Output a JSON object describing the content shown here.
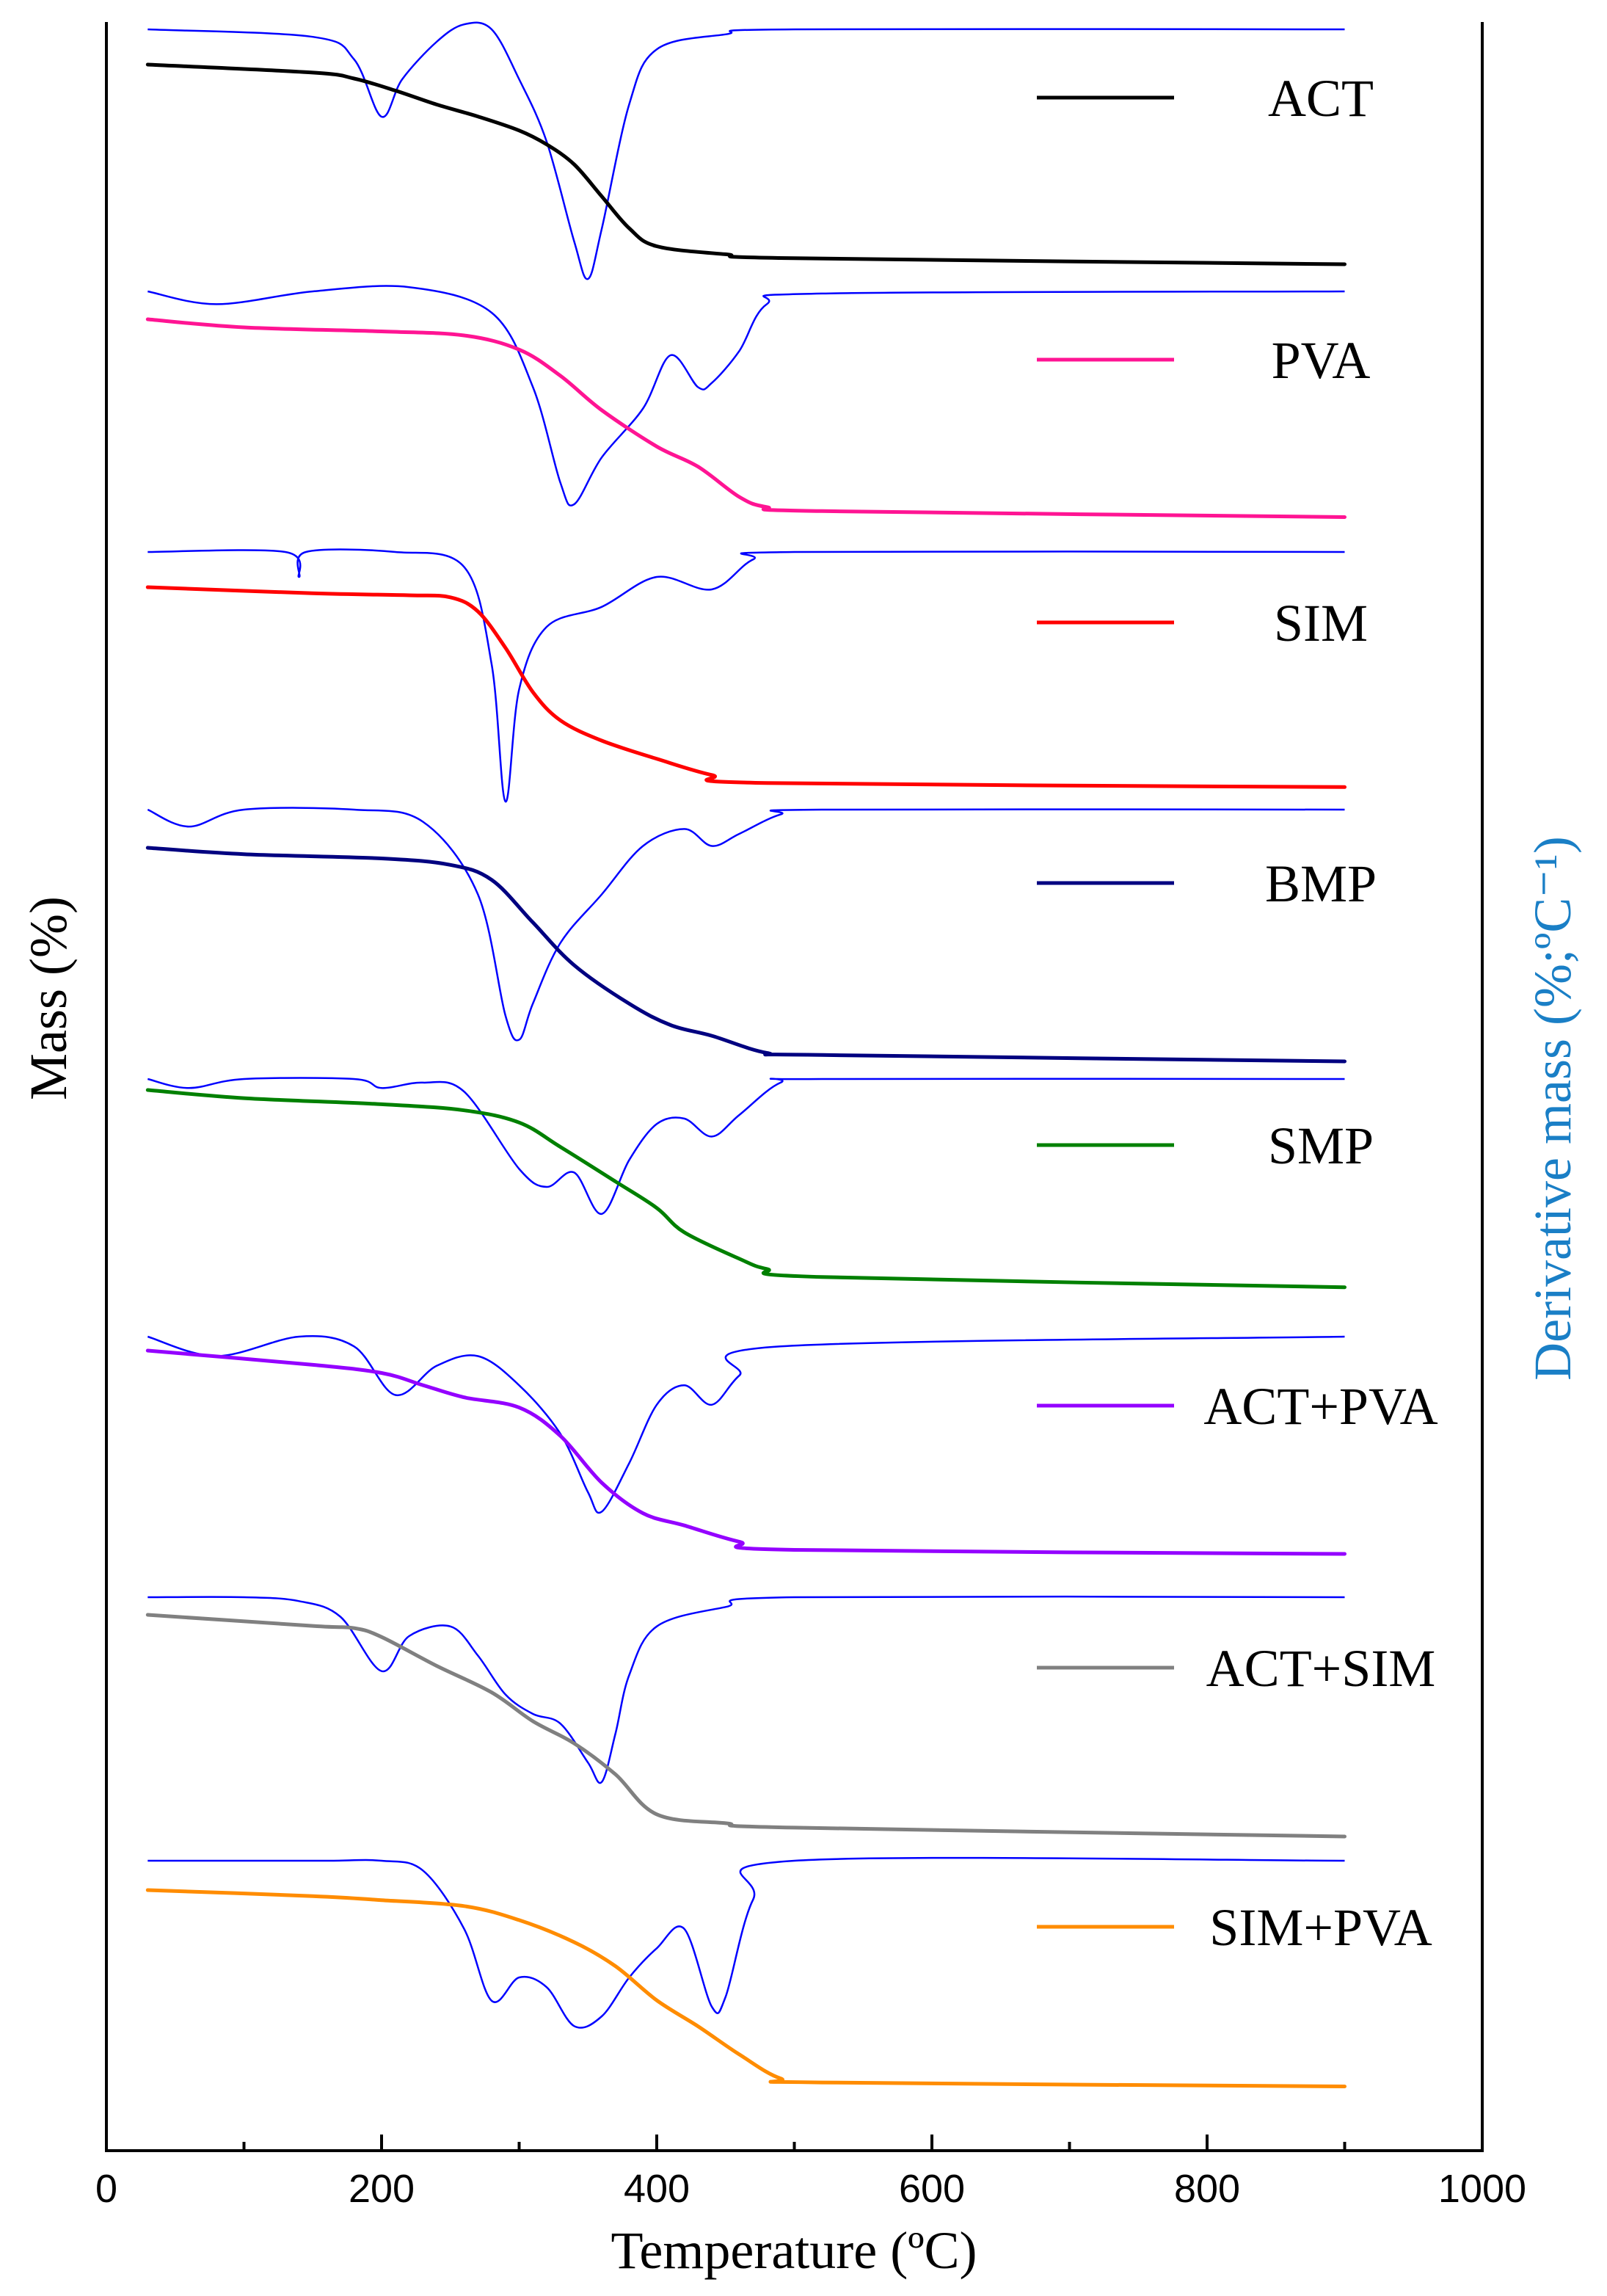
{
  "chart_data": {
    "type": "line",
    "xlabel": "Temperature (ºC)",
    "ylabel": "Mass (%)",
    "y2label": "Derivative mass (%;ºC⁻¹)",
    "xlim": [
      0,
      1000
    ],
    "xticks": [
      0,
      200,
      400,
      600,
      800,
      1000
    ],
    "colors": {
      "dtg": "#0000ff",
      "y2label": "#1a7fc6",
      "axes": "#000000"
    },
    "series": [
      {
        "name": "ACT",
        "color": "#000000",
        "tg": [
          [
            30,
            0
          ],
          [
            150,
            0.04
          ],
          [
            180,
            0.07
          ],
          [
            210,
            0.13
          ],
          [
            240,
            0.2
          ],
          [
            270,
            0.26
          ],
          [
            300,
            0.33
          ],
          [
            320,
            0.4
          ],
          [
            340,
            0.5
          ],
          [
            360,
            0.66
          ],
          [
            380,
            0.82
          ],
          [
            400,
            0.91
          ],
          [
            450,
            0.95
          ],
          [
            500,
            0.97
          ],
          [
            900,
            1.0
          ]
        ],
        "dtg": [
          [
            30,
            0
          ],
          [
            150,
            0.03
          ],
          [
            180,
            0.12
          ],
          [
            200,
            0.35
          ],
          [
            215,
            0.2
          ],
          [
            240,
            0.05
          ],
          [
            260,
            -0.02
          ],
          [
            280,
            0.0
          ],
          [
            300,
            0.2
          ],
          [
            320,
            0.45
          ],
          [
            340,
            0.85
          ],
          [
            350,
            1.0
          ],
          [
            360,
            0.8
          ],
          [
            380,
            0.3
          ],
          [
            400,
            0.08
          ],
          [
            450,
            0.02
          ],
          [
            500,
            0.0
          ],
          [
            900,
            0.0
          ]
        ]
      },
      {
        "name": "PVA",
        "color": "#ff1493",
        "tg": [
          [
            30,
            0
          ],
          [
            100,
            0.04
          ],
          [
            200,
            0.06
          ],
          [
            260,
            0.08
          ],
          [
            300,
            0.15
          ],
          [
            330,
            0.28
          ],
          [
            360,
            0.45
          ],
          [
            400,
            0.63
          ],
          [
            430,
            0.73
          ],
          [
            460,
            0.88
          ],
          [
            480,
            0.93
          ],
          [
            520,
            0.95
          ],
          [
            900,
            0.98
          ]
        ],
        "dtg": [
          [
            30,
            0
          ],
          [
            80,
            0.06
          ],
          [
            150,
            0.0
          ],
          [
            220,
            -0.02
          ],
          [
            280,
            0.1
          ],
          [
            310,
            0.45
          ],
          [
            330,
            0.9
          ],
          [
            340,
            1.0
          ],
          [
            360,
            0.78
          ],
          [
            390,
            0.55
          ],
          [
            410,
            0.3
          ],
          [
            430,
            0.45
          ],
          [
            440,
            0.43
          ],
          [
            460,
            0.28
          ],
          [
            480,
            0.06
          ],
          [
            520,
            0.01
          ],
          [
            900,
            0.0
          ]
        ]
      },
      {
        "name": "SIM",
        "color": "#ff0000",
        "tg": [
          [
            30,
            0
          ],
          [
            150,
            0.03
          ],
          [
            220,
            0.04
          ],
          [
            250,
            0.05
          ],
          [
            270,
            0.12
          ],
          [
            290,
            0.3
          ],
          [
            310,
            0.52
          ],
          [
            330,
            0.66
          ],
          [
            360,
            0.76
          ],
          [
            400,
            0.85
          ],
          [
            440,
            0.93
          ],
          [
            480,
            0.97
          ],
          [
            900,
            0.99
          ]
        ],
        "dtg": [
          [
            30,
            0
          ],
          [
            130,
            0.0
          ],
          [
            140,
            0.1
          ],
          [
            145,
            0.0
          ],
          [
            210,
            0.0
          ],
          [
            260,
            0.06
          ],
          [
            280,
            0.45
          ],
          [
            290,
            1.0
          ],
          [
            300,
            0.55
          ],
          [
            320,
            0.3
          ],
          [
            360,
            0.22
          ],
          [
            400,
            0.1
          ],
          [
            440,
            0.15
          ],
          [
            470,
            0.03
          ],
          [
            500,
            0.0
          ],
          [
            900,
            0.0
          ]
        ]
      },
      {
        "name": "BMP",
        "color": "#000080",
        "tg": [
          [
            30,
            0
          ],
          [
            100,
            0.03
          ],
          [
            200,
            0.05
          ],
          [
            250,
            0.08
          ],
          [
            280,
            0.15
          ],
          [
            310,
            0.35
          ],
          [
            340,
            0.55
          ],
          [
            380,
            0.73
          ],
          [
            410,
            0.83
          ],
          [
            440,
            0.88
          ],
          [
            480,
            0.96
          ],
          [
            520,
            0.97
          ],
          [
            900,
            1.0
          ]
        ],
        "dtg": [
          [
            30,
            0
          ],
          [
            60,
            0.07
          ],
          [
            100,
            0.0
          ],
          [
            180,
            0.0
          ],
          [
            230,
            0.05
          ],
          [
            270,
            0.35
          ],
          [
            290,
            0.85
          ],
          [
            300,
            0.95
          ],
          [
            310,
            0.8
          ],
          [
            330,
            0.55
          ],
          [
            360,
            0.35
          ],
          [
            390,
            0.15
          ],
          [
            420,
            0.08
          ],
          [
            440,
            0.15
          ],
          [
            460,
            0.1
          ],
          [
            490,
            0.02
          ],
          [
            520,
            0.0
          ],
          [
            900,
            0.0
          ]
        ]
      },
      {
        "name": "SMP",
        "color": "#008000",
        "tg": [
          [
            30,
            0
          ],
          [
            100,
            0.04
          ],
          [
            200,
            0.07
          ],
          [
            260,
            0.1
          ],
          [
            300,
            0.16
          ],
          [
            330,
            0.28
          ],
          [
            370,
            0.45
          ],
          [
            400,
            0.58
          ],
          [
            420,
            0.7
          ],
          [
            460,
            0.83
          ],
          [
            480,
            0.88
          ],
          [
            520,
            0.92
          ],
          [
            900,
            0.97
          ]
        ],
        "dtg": [
          [
            30,
            0
          ],
          [
            60,
            0.05
          ],
          [
            100,
            0.0
          ],
          [
            180,
            0.0
          ],
          [
            200,
            0.05
          ],
          [
            230,
            0.02
          ],
          [
            260,
            0.07
          ],
          [
            300,
            0.5
          ],
          [
            320,
            0.6
          ],
          [
            340,
            0.52
          ],
          [
            360,
            0.75
          ],
          [
            380,
            0.45
          ],
          [
            400,
            0.25
          ],
          [
            420,
            0.22
          ],
          [
            440,
            0.32
          ],
          [
            460,
            0.2
          ],
          [
            490,
            0.02
          ],
          [
            520,
            0.0
          ],
          [
            900,
            0.0
          ]
        ]
      },
      {
        "name": "ACT+PVA",
        "color": "#9400ff",
        "tg": [
          [
            30,
            0
          ],
          [
            150,
            0.07
          ],
          [
            200,
            0.11
          ],
          [
            230,
            0.17
          ],
          [
            260,
            0.23
          ],
          [
            300,
            0.28
          ],
          [
            330,
            0.42
          ],
          [
            360,
            0.65
          ],
          [
            390,
            0.8
          ],
          [
            420,
            0.86
          ],
          [
            460,
            0.94
          ],
          [
            500,
            0.98
          ],
          [
            900,
            1.0
          ]
        ],
        "dtg": [
          [
            30,
            0
          ],
          [
            80,
            0.1
          ],
          [
            140,
            0.0
          ],
          [
            180,
            0.05
          ],
          [
            210,
            0.3
          ],
          [
            240,
            0.15
          ],
          [
            270,
            0.1
          ],
          [
            300,
            0.25
          ],
          [
            330,
            0.5
          ],
          [
            350,
            0.8
          ],
          [
            360,
            0.9
          ],
          [
            380,
            0.65
          ],
          [
            400,
            0.35
          ],
          [
            420,
            0.25
          ],
          [
            440,
            0.35
          ],
          [
            460,
            0.2
          ],
          [
            490,
            0.05
          ],
          [
            900,
            0.0
          ]
        ]
      },
      {
        "name": "ACT+SIM",
        "color": "#808080",
        "tg": [
          [
            30,
            0
          ],
          [
            150,
            0.05
          ],
          [
            180,
            0.06
          ],
          [
            200,
            0.1
          ],
          [
            240,
            0.23
          ],
          [
            280,
            0.35
          ],
          [
            310,
            0.48
          ],
          [
            340,
            0.58
          ],
          [
            370,
            0.72
          ],
          [
            400,
            0.9
          ],
          [
            450,
            0.94
          ],
          [
            500,
            0.96
          ],
          [
            900,
            1.0
          ]
        ],
        "dtg": [
          [
            30,
            0
          ],
          [
            100,
            0.0
          ],
          [
            140,
            0.02
          ],
          [
            170,
            0.1
          ],
          [
            200,
            0.38
          ],
          [
            220,
            0.2
          ],
          [
            250,
            0.15
          ],
          [
            270,
            0.3
          ],
          [
            290,
            0.5
          ],
          [
            310,
            0.6
          ],
          [
            330,
            0.65
          ],
          [
            350,
            0.85
          ],
          [
            360,
            0.95
          ],
          [
            370,
            0.7
          ],
          [
            380,
            0.4
          ],
          [
            400,
            0.15
          ],
          [
            450,
            0.05
          ],
          [
            500,
            0.0
          ],
          [
            900,
            0.0
          ]
        ]
      },
      {
        "name": "SIM+PVA",
        "color": "#ff8c00",
        "tg": [
          [
            30,
            0
          ],
          [
            150,
            0.03
          ],
          [
            200,
            0.05
          ],
          [
            260,
            0.08
          ],
          [
            300,
            0.15
          ],
          [
            340,
            0.26
          ],
          [
            370,
            0.38
          ],
          [
            400,
            0.55
          ],
          [
            430,
            0.68
          ],
          [
            460,
            0.82
          ],
          [
            490,
            0.94
          ],
          [
            520,
            0.96
          ],
          [
            900,
            0.98
          ]
        ],
        "dtg": [
          [
            30,
            0
          ],
          [
            100,
            0.0
          ],
          [
            160,
            0.0
          ],
          [
            200,
            0.0
          ],
          [
            230,
            0.05
          ],
          [
            260,
            0.35
          ],
          [
            280,
            0.72
          ],
          [
            300,
            0.6
          ],
          [
            320,
            0.65
          ],
          [
            340,
            0.85
          ],
          [
            360,
            0.8
          ],
          [
            380,
            0.6
          ],
          [
            400,
            0.45
          ],
          [
            420,
            0.35
          ],
          [
            440,
            0.75
          ],
          [
            450,
            0.7
          ],
          [
            470,
            0.2
          ],
          [
            500,
            0.0
          ],
          [
            900,
            0.0
          ]
        ]
      }
    ]
  }
}
